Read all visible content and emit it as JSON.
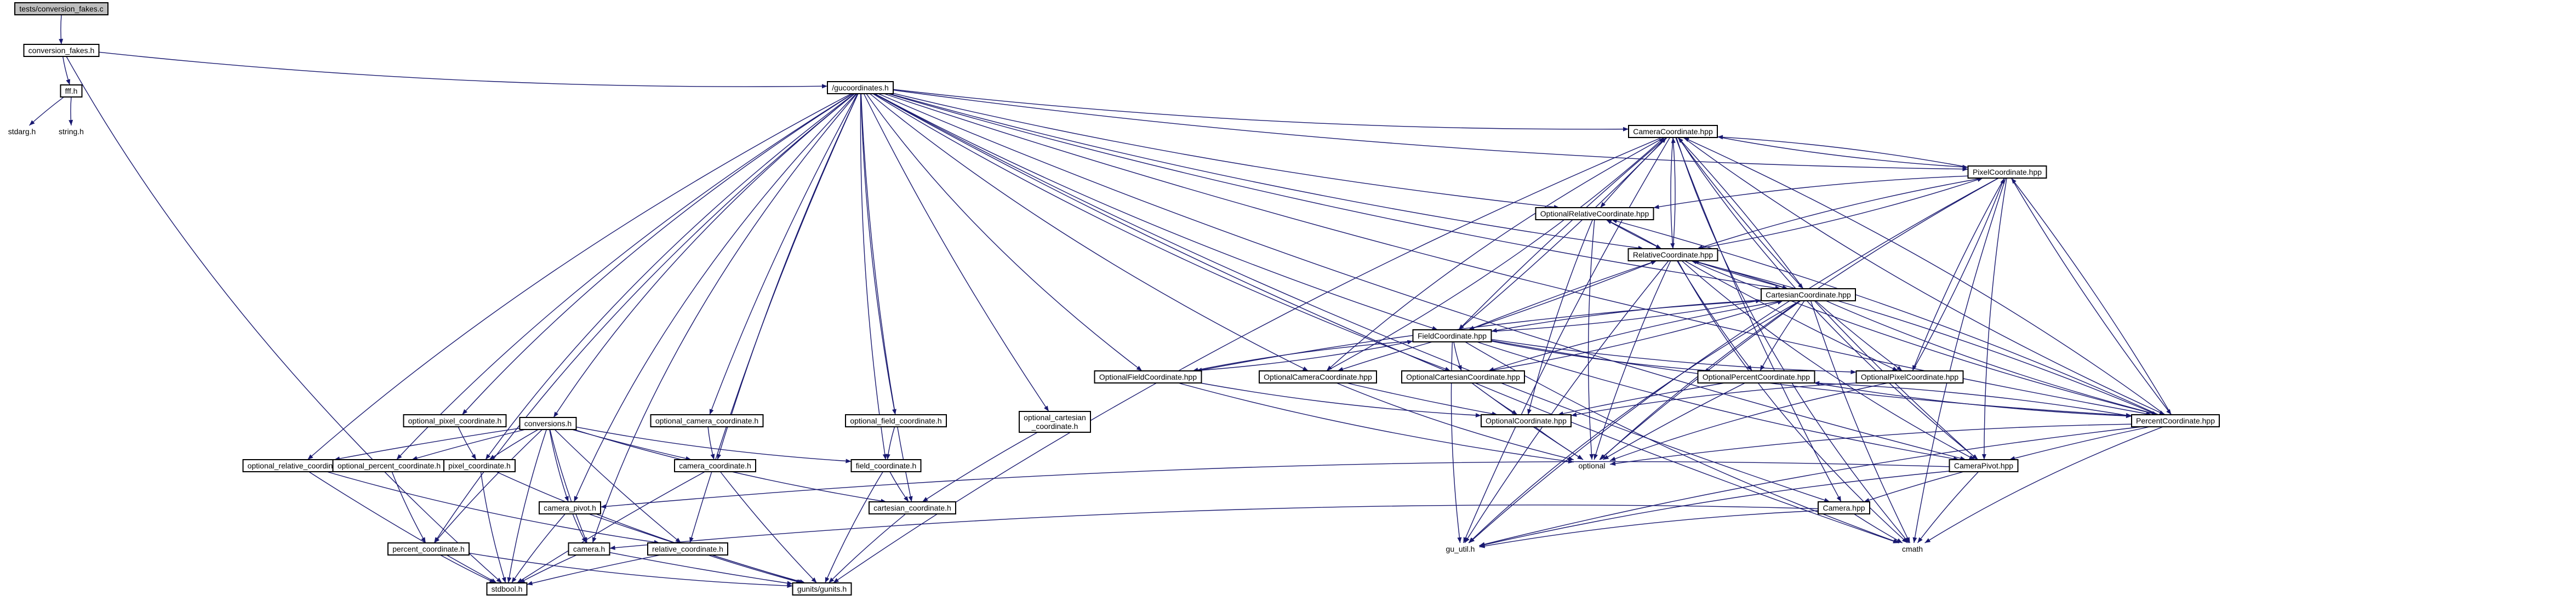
{
  "diagram": {
    "nodes": [
      {
        "id": "root",
        "label": "tests/conversion_fakes.c"
      },
      {
        "id": "fakes_h",
        "label": "conversion_fakes.h"
      },
      {
        "id": "fff_h",
        "label": "fff.h"
      },
      {
        "id": "stdarg_h",
        "label": "stdarg.h"
      },
      {
        "id": "string_h",
        "label": "string.h"
      },
      {
        "id": "gucoord_h",
        "label": "/gucoordinates.h"
      },
      {
        "id": "camcoord_hpp",
        "label": "CameraCoordinate.hpp"
      },
      {
        "id": "pixcoord_hpp",
        "label": "PixelCoordinate.hpp"
      },
      {
        "id": "optrel_hpp",
        "label": "OptionalRelativeCoordinate.hpp"
      },
      {
        "id": "relcoord_hpp",
        "label": "RelativeCoordinate.hpp"
      },
      {
        "id": "cartcoord_hpp",
        "label": "CartesianCoordinate.hpp"
      },
      {
        "id": "fieldcoord_hpp",
        "label": "FieldCoordinate.hpp"
      },
      {
        "id": "optfield_hpp",
        "label": "OptionalFieldCoordinate.hpp"
      },
      {
        "id": "optcam_hpp",
        "label": "OptionalCameraCoordinate.hpp"
      },
      {
        "id": "optcart_hpp",
        "label": "OptionalCartesianCoordinate.hpp"
      },
      {
        "id": "optpct_hpp",
        "label": "OptionalPercentCoordinate.hpp"
      },
      {
        "id": "optpix_hpp",
        "label": "OptionalPixelCoordinate.hpp"
      },
      {
        "id": "optcoord_hpp",
        "label": "OptionalCoordinate.hpp"
      },
      {
        "id": "pctcoord_hpp",
        "label": "PercentCoordinate.hpp"
      },
      {
        "id": "campivot_hpp",
        "label": "CameraPivot.hpp"
      },
      {
        "id": "camera_hpp",
        "label": "Camera.hpp"
      },
      {
        "id": "optional",
        "label": "optional"
      },
      {
        "id": "gu_util_h",
        "label": "gu_util.h"
      },
      {
        "id": "cmath",
        "label": "cmath"
      },
      {
        "id": "conversions_h",
        "label": "conversions.h"
      },
      {
        "id": "opt_pixel_h",
        "label": "optional_pixel_coordinate.h"
      },
      {
        "id": "opt_camera_h",
        "label": "optional_camera_coordinate.h"
      },
      {
        "id": "opt_field_h",
        "label": "optional_field_coordinate.h"
      },
      {
        "id": "opt_cart_h",
        "label": "optional_cartesian\n_coordinate.h"
      },
      {
        "id": "opt_rel_h",
        "label": "optional_relative_coordinate.h"
      },
      {
        "id": "opt_pct_h",
        "label": "optional_percent_coordinate.h"
      },
      {
        "id": "pixel_h",
        "label": "pixel_coordinate.h"
      },
      {
        "id": "camera_coord_h",
        "label": "camera_coordinate.h"
      },
      {
        "id": "field_h",
        "label": "field_coordinate.h"
      },
      {
        "id": "cart_h",
        "label": "cartesian_coordinate.h"
      },
      {
        "id": "campivot_h",
        "label": "camera_pivot.h"
      },
      {
        "id": "camera_h",
        "label": "camera.h"
      },
      {
        "id": "pct_h",
        "label": "percent_coordinate.h"
      },
      {
        "id": "rel_h",
        "label": "relative_coordinate.h"
      },
      {
        "id": "stdbool_h",
        "label": "stdbool.h"
      },
      {
        "id": "gunits_h",
        "label": "gunits/gunits.h"
      }
    ]
  }
}
